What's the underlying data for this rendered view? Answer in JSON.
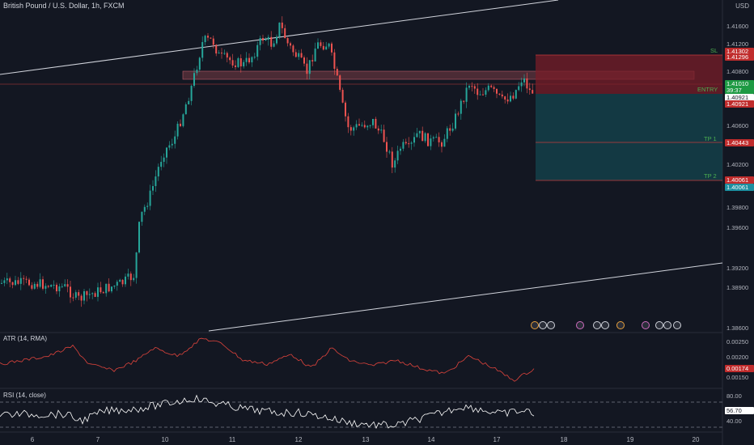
{
  "header": {
    "title": "British Pound / U.S. Dollar, 1h, FXCM",
    "currency": "USD"
  },
  "indicators": {
    "atr_label": "ATR (14, RMA)",
    "rsi_label": "RSI (14, close)"
  },
  "price_axis": {
    "ticks": [
      "1.41600",
      "1.41200",
      "1.40800",
      "1.40600",
      "1.40200",
      "1.39800",
      "1.39600",
      "1.39200",
      "1.38900",
      "1.38600"
    ]
  },
  "atr_axis": {
    "ticks": [
      "0.00250",
      "0.00200",
      "0.00150"
    ]
  },
  "rsi_axis": {
    "ticks": [
      "80.00",
      "40.00"
    ]
  },
  "tags": {
    "sl_1": "1.41302",
    "sl_2": "1.41296",
    "last": "1.41010",
    "countdown": "39:37",
    "entry_1": "1.40921",
    "entry_2": "1.40921",
    "tp1": "1.40443",
    "tp2_1": "1.40061",
    "tp2_2": "1.40061",
    "atr_value": "0.00174",
    "rsi_value": "56.70"
  },
  "zones": {
    "sl": "SL",
    "entry": "ENTRY",
    "tp1": "TP 1",
    "tp2": "TP 2"
  },
  "x_axis": {
    "labels": [
      "6",
      "7",
      "10",
      "11",
      "12",
      "13",
      "14",
      "17",
      "18",
      "19",
      "20"
    ]
  },
  "events": {
    "icons": [
      "calendar-event",
      "calendar-event",
      "calendar-event",
      "calendar-event",
      "calendar-event",
      "calendar-event",
      "calendar-event",
      "calendar-event",
      "calendar-event",
      "calendar-event",
      "calendar-event"
    ]
  },
  "colors": {
    "background": "#131722",
    "up": "#26a69a",
    "down": "#ef5350",
    "sl_zone": "#5b1f24",
    "tp_zone": "#0f3d44",
    "atr_line": "#e0443c",
    "rsi_line": "#ffffff"
  }
}
